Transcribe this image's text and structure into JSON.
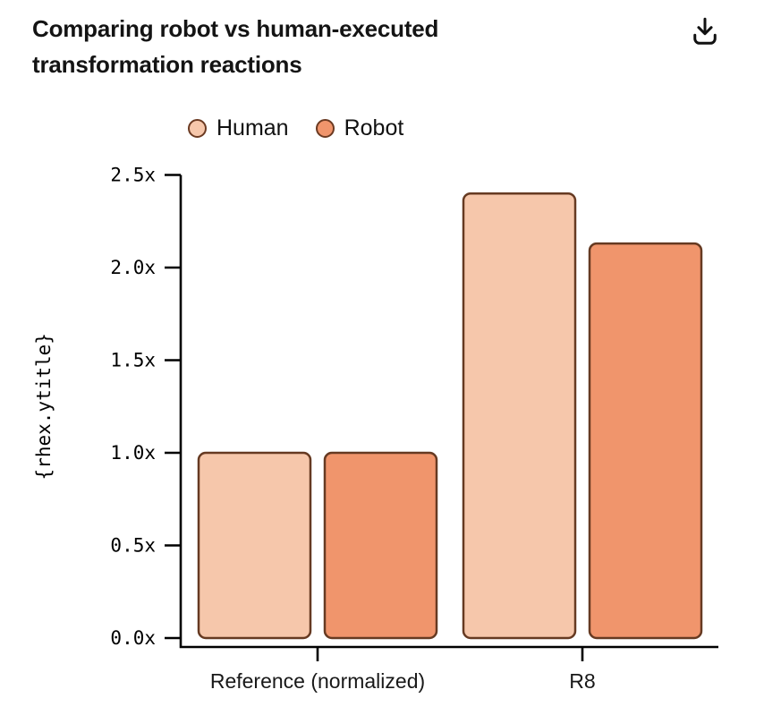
{
  "header": {
    "title": "Comparing robot vs human-executed transformation reactions"
  },
  "icons": {
    "download": "download-icon"
  },
  "chart_data": {
    "type": "bar",
    "title": "Comparing robot vs human-executed transformation reactions",
    "categories": [
      "Reference (normalized)",
      "R8"
    ],
    "series": [
      {
        "name": "Human",
        "color": "#f6c7ab",
        "values": [
          1.0,
          2.4
        ]
      },
      {
        "name": "Robot",
        "color": "#f0956c",
        "values": [
          1.0,
          2.13
        ]
      }
    ],
    "xlabel": "",
    "ylabel": "{rhex.ytitle}",
    "ylim": [
      0,
      2.5
    ],
    "yticks": [
      "0.0x",
      "0.5x",
      "1.0x",
      "1.5x",
      "2.0x",
      "2.5x"
    ],
    "grid": false,
    "legend_position": "top",
    "colors": {
      "bar_border": "#663a22",
      "axis": "#000000",
      "text": "#111111"
    }
  }
}
